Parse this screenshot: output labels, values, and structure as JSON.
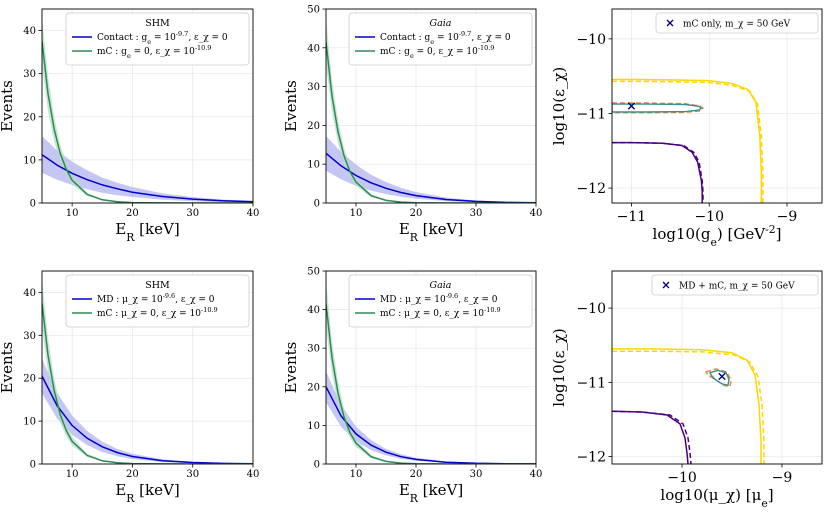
{
  "chart_data": [
    {
      "id": "a",
      "type": "line",
      "xlabel": "E_R [keV]",
      "ylabel": "Events",
      "xlim": [
        5,
        40
      ],
      "ylim": [
        0,
        45
      ],
      "xticks": [
        10,
        20,
        30,
        40
      ],
      "yticks": [
        0,
        10,
        20,
        30,
        40
      ],
      "legend": {
        "title": "SHM",
        "title_italic": false,
        "position": "top-right",
        "entries": [
          "Contact : g_e = 10^-9.7, ε_χ = 0",
          "mC : g_e = 0, ε_χ = 10^-10.9"
        ]
      },
      "series": [
        {
          "name": "Contact : g_e = 10^-9.7, ε_χ = 0",
          "color": "#0000cc",
          "band": "#b3b3f0",
          "x": [
            5,
            7.5,
            10,
            12.5,
            15,
            17.5,
            20,
            25,
            30,
            35,
            40
          ],
          "y": [
            11.2,
            8.8,
            6.9,
            5.4,
            4.2,
            3.3,
            2.5,
            1.5,
            0.9,
            0.5,
            0.3
          ],
          "lower": [
            7.0,
            5.4,
            4.2,
            3.2,
            2.4,
            1.8,
            1.4,
            0.8,
            0.4,
            0.2,
            0.1
          ],
          "upper": [
            15.5,
            12.2,
            9.6,
            7.6,
            5.9,
            4.7,
            3.7,
            2.2,
            1.4,
            0.8,
            0.5
          ]
        },
        {
          "name": "mC : g_e = 0, ε_χ = 10^-10.9",
          "color": "#2e8b57",
          "band": "#b4dcc4",
          "x": [
            5,
            6,
            7,
            8,
            9,
            10,
            12.5,
            15,
            17.5,
            20,
            25,
            30,
            40
          ],
          "y": [
            37.5,
            25.4,
            17.2,
            11.6,
            7.9,
            5.3,
            2.0,
            0.75,
            0.3,
            0.1,
            0.02,
            0,
            0
          ],
          "lower": [
            31.9,
            21.3,
            14.3,
            9.6,
            6.5,
            4.3,
            1.6,
            0.58,
            0.22,
            0.07,
            0.01,
            0,
            0
          ],
          "upper": [
            43.1,
            29.5,
            20.1,
            13.6,
            9.3,
            6.3,
            2.4,
            0.92,
            0.38,
            0.13,
            0.03,
            0,
            0
          ]
        }
      ]
    },
    {
      "id": "b",
      "type": "line",
      "xlabel": "E_R [keV]",
      "ylabel": "Events",
      "xlim": [
        5,
        40
      ],
      "ylim": [
        0,
        50
      ],
      "xticks": [
        10,
        20,
        30,
        40
      ],
      "yticks": [
        0,
        10,
        20,
        30,
        40,
        50
      ],
      "legend": {
        "title": "Gaia",
        "title_italic": true,
        "position": "top-right",
        "entries": [
          "Contact : g_e = 10^-9.7, ε_χ = 0",
          "mC : g_e = 0, ε_χ = 10^-10.9"
        ]
      },
      "series": [
        {
          "name": "Contact : g_e = 10^-9.7, ε_χ = 0",
          "color": "#0000cc",
          "band": "#b3b3f0",
          "x": [
            5,
            7.5,
            10,
            12.5,
            15,
            17.5,
            20,
            25,
            30,
            35,
            40
          ],
          "y": [
            12.8,
            9.6,
            7.1,
            5.2,
            3.8,
            2.7,
            1.9,
            0.9,
            0.4,
            0.15,
            0.05
          ],
          "lower": [
            8.3,
            6.1,
            4.4,
            3.2,
            2.3,
            1.6,
            1.1,
            0.5,
            0.2,
            0.07,
            0.02
          ],
          "upper": [
            17.3,
            13.2,
            9.9,
            7.3,
            5.4,
            3.9,
            2.8,
            1.4,
            0.65,
            0.25,
            0.1
          ]
        },
        {
          "name": "mC : g_e = 0, ε_χ = 10^-10.9",
          "color": "#2e8b57",
          "band": "#b4dcc4",
          "x": [
            5,
            6,
            7,
            8,
            9,
            10,
            12.5,
            15,
            17.5,
            20,
            25,
            30,
            40
          ],
          "y": [
            41.5,
            27.6,
            18.4,
            12.2,
            8.1,
            5.4,
            1.9,
            0.68,
            0.24,
            0.08,
            0.01,
            0,
            0
          ],
          "lower": [
            35.5,
            23.4,
            15.4,
            10.1,
            6.7,
            4.4,
            1.5,
            0.52,
            0.18,
            0.06,
            0.01,
            0,
            0
          ],
          "upper": [
            47.5,
            31.8,
            21.4,
            14.3,
            9.5,
            6.4,
            2.3,
            0.84,
            0.3,
            0.1,
            0.02,
            0,
            0
          ]
        }
      ]
    },
    {
      "id": "c",
      "type": "line",
      "xlabel": "log10(g_e) [GeV^-2]",
      "ylabel": "log10(ε_χ)",
      "xlim": [
        -11.25,
        -8.55
      ],
      "ylim": [
        -12.2,
        -9.6
      ],
      "xticks": [
        -11,
        -10,
        -9
      ],
      "yticks": [
        -12,
        -11,
        -10
      ],
      "legend": {
        "title": "",
        "position": "top-right",
        "entries": [
          "mC only, m_χ = 50 GeV"
        ]
      },
      "marker": {
        "x": -11.0,
        "y": -10.9,
        "color": "#000080",
        "label": "mC only, m_χ = 50 GeV"
      },
      "series": [
        {
          "name": "yellow solid",
          "color": "#ffd700",
          "dash": false,
          "x": [
            -11.25,
            -11.0,
            -10.5,
            -10.0,
            -9.7,
            -9.5,
            -9.4,
            -9.35,
            -9.33,
            -9.33
          ],
          "y": [
            -10.545,
            -10.545,
            -10.55,
            -10.56,
            -10.6,
            -10.68,
            -10.85,
            -11.3,
            -11.8,
            -12.2
          ]
        },
        {
          "name": "yellow dashed",
          "color": "#ffd700",
          "dash": true,
          "x": [
            -11.25,
            -11.0,
            -10.5,
            -10.0,
            -9.7,
            -9.48,
            -9.38,
            -9.33,
            -9.31,
            -9.31
          ],
          "y": [
            -10.57,
            -10.57,
            -10.575,
            -10.585,
            -10.625,
            -10.7,
            -10.87,
            -11.3,
            -11.8,
            -12.2
          ]
        },
        {
          "name": "purple solid",
          "color": "#4b0082",
          "dash": false,
          "x": [
            -11.25,
            -11.0,
            -10.6,
            -10.35,
            -10.22,
            -10.15,
            -10.1,
            -10.09,
            -10.09
          ],
          "y": [
            -11.39,
            -11.39,
            -11.4,
            -11.43,
            -11.52,
            -11.65,
            -11.9,
            -12.05,
            -12.2
          ]
        },
        {
          "name": "purple dashed",
          "color": "#4b0082",
          "dash": true,
          "x": [
            -11.25,
            -11.0,
            -10.6,
            -10.33,
            -10.2,
            -10.13,
            -10.09,
            -10.08,
            -10.08
          ],
          "y": [
            -11.39,
            -11.39,
            -11.4,
            -11.43,
            -11.52,
            -11.65,
            -11.9,
            -12.05,
            -12.2
          ]
        },
        {
          "name": "orange contour",
          "color": "#e8803a",
          "dash": true,
          "closed": true,
          "x": [
            -11.25,
            -10.8,
            -10.3,
            -10.12,
            -10.08,
            -10.12,
            -10.3,
            -10.8,
            -11.25
          ],
          "y": [
            -10.86,
            -10.86,
            -10.87,
            -10.9,
            -10.93,
            -10.965,
            -10.985,
            -10.99,
            -10.99
          ]
        },
        {
          "name": "teal contour",
          "color": "#3a8f8f",
          "dash": false,
          "closed": true,
          "x": [
            -11.25,
            -10.8,
            -10.3,
            -10.13,
            -10.1,
            -10.13,
            -10.3,
            -10.8,
            -11.25
          ],
          "y": [
            -10.875,
            -10.875,
            -10.88,
            -10.905,
            -10.93,
            -10.955,
            -10.975,
            -10.98,
            -10.98
          ]
        }
      ]
    },
    {
      "id": "d",
      "type": "line",
      "xlabel": "E_R [keV]",
      "ylabel": "Events",
      "xlim": [
        5,
        40
      ],
      "ylim": [
        0,
        45
      ],
      "xticks": [
        10,
        20,
        30,
        40
      ],
      "yticks": [
        0,
        10,
        20,
        30,
        40
      ],
      "legend": {
        "title": "SHM",
        "title_italic": false,
        "position": "top-right",
        "entries": [
          "MD : μ_χ = 10^-9.6, ε_χ = 0",
          "mC : μ_χ = 0, ε_χ = 10^-10.9"
        ]
      },
      "series": [
        {
          "name": "MD : μ_χ = 10^-9.6, ε_χ = 0",
          "color": "#0000cc",
          "band": "#b3b3f0",
          "x": [
            5,
            7.5,
            10,
            12.5,
            15,
            17.5,
            20,
            25,
            30,
            35,
            40
          ],
          "y": [
            20.5,
            13.6,
            9.0,
            6.0,
            4.0,
            2.65,
            1.75,
            0.77,
            0.34,
            0.15,
            0.07
          ],
          "lower": [
            16.5,
            10.6,
            6.8,
            4.4,
            2.8,
            1.8,
            1.15,
            0.47,
            0.19,
            0.08,
            0.03
          ],
          "upper": [
            24.5,
            16.6,
            11.3,
            7.7,
            5.2,
            3.5,
            2.4,
            1.1,
            0.5,
            0.23,
            0.11
          ]
        },
        {
          "name": "mC : μ_χ = 0, ε_χ = 10^-10.9",
          "color": "#2e8b57",
          "band": "#b4dcc4",
          "x": [
            5,
            6,
            7,
            8,
            9,
            10,
            12.5,
            15,
            17.5,
            20,
            25,
            30,
            40
          ],
          "y": [
            37.5,
            25.4,
            17.2,
            11.6,
            7.9,
            5.3,
            2.0,
            0.75,
            0.3,
            0.1,
            0.02,
            0,
            0
          ],
          "lower": [
            31.9,
            21.3,
            14.3,
            9.6,
            6.5,
            4.3,
            1.6,
            0.58,
            0.22,
            0.07,
            0.01,
            0,
            0
          ],
          "upper": [
            43.1,
            29.5,
            20.1,
            13.6,
            9.3,
            6.3,
            2.4,
            0.92,
            0.38,
            0.13,
            0.03,
            0,
            0
          ]
        }
      ]
    },
    {
      "id": "e",
      "type": "line",
      "xlabel": "E_R [keV]",
      "ylabel": "Events",
      "xlim": [
        5,
        40
      ],
      "ylim": [
        0,
        50
      ],
      "xticks": [
        10,
        20,
        30,
        40
      ],
      "yticks": [
        0,
        10,
        20,
        30,
        40,
        50
      ],
      "legend": {
        "title": "Gaia",
        "title_italic": true,
        "position": "top-right",
        "entries": [
          "MD : μ_χ = 10^-9.6, ε_χ = 0",
          "mC : μ_χ = 0, ε_χ = 10^-10.9"
        ]
      },
      "series": [
        {
          "name": "MD : μ_χ = 10^-9.6, ε_χ = 0",
          "color": "#0000cc",
          "band": "#b3b3f0",
          "x": [
            5,
            7.5,
            10,
            12.5,
            15,
            17.5,
            20,
            25,
            30,
            35,
            40
          ],
          "y": [
            20.0,
            12.5,
            7.8,
            4.9,
            3.05,
            1.9,
            1.2,
            0.46,
            0.18,
            0.07,
            0.03
          ],
          "lower": [
            16.0,
            9.7,
            5.9,
            3.6,
            2.2,
            1.35,
            0.82,
            0.3,
            0.11,
            0.04,
            0.01
          ],
          "upper": [
            24.0,
            15.3,
            9.7,
            6.2,
            3.9,
            2.5,
            1.6,
            0.62,
            0.25,
            0.1,
            0.05
          ]
        },
        {
          "name": "mC : μ_χ = 0, ε_χ = 10^-10.9",
          "color": "#2e8b57",
          "band": "#b4dcc4",
          "x": [
            5,
            6,
            7,
            8,
            9,
            10,
            12.5,
            15,
            17.5,
            20,
            25,
            30,
            40
          ],
          "y": [
            41.5,
            27.6,
            18.4,
            12.2,
            8.1,
            5.4,
            1.9,
            0.68,
            0.24,
            0.08,
            0.01,
            0,
            0
          ],
          "lower": [
            35.5,
            23.4,
            15.4,
            10.1,
            6.7,
            4.4,
            1.5,
            0.52,
            0.18,
            0.06,
            0.01,
            0,
            0
          ],
          "upper": [
            47.5,
            31.8,
            21.4,
            14.3,
            9.5,
            6.4,
            2.3,
            0.84,
            0.3,
            0.1,
            0.02,
            0,
            0
          ]
        }
      ]
    },
    {
      "id": "f",
      "type": "line",
      "xlabel": "log10(μ_χ) [μ_e]",
      "ylabel": "log10(ε_χ)",
      "xlim": [
        -10.7,
        -8.6
      ],
      "ylim": [
        -12.1,
        -9.5
      ],
      "xticks": [
        -10,
        -9
      ],
      "yticks": [
        -12,
        -11,
        -10
      ],
      "legend": {
        "title": "",
        "position": "top-right",
        "entries": [
          "MD + mC, m_χ = 50 GeV"
        ]
      },
      "marker": {
        "x": -9.6,
        "y": -10.92,
        "color": "#000080",
        "label": "MD + mC, m_χ = 50 GeV"
      },
      "series": [
        {
          "name": "yellow solid",
          "color": "#ffd700",
          "dash": false,
          "x": [
            -10.7,
            -10.3,
            -9.8,
            -9.5,
            -9.35,
            -9.27,
            -9.23,
            -9.21,
            -9.21
          ],
          "y": [
            -10.55,
            -10.55,
            -10.56,
            -10.6,
            -10.7,
            -10.9,
            -11.3,
            -11.8,
            -12.1
          ]
        },
        {
          "name": "yellow dashed",
          "color": "#ffd700",
          "dash": true,
          "x": [
            -10.7,
            -10.3,
            -9.8,
            -9.48,
            -9.32,
            -9.24,
            -9.2,
            -9.18,
            -9.18
          ],
          "y": [
            -10.58,
            -10.58,
            -10.59,
            -10.63,
            -10.73,
            -10.92,
            -11.3,
            -11.8,
            -12.1
          ]
        },
        {
          "name": "purple solid",
          "color": "#4b0082",
          "dash": false,
          "x": [
            -10.7,
            -10.4,
            -10.15,
            -10.02,
            -9.97,
            -9.95,
            -9.94
          ],
          "y": [
            -11.39,
            -11.4,
            -11.44,
            -11.56,
            -11.75,
            -11.95,
            -12.1
          ]
        },
        {
          "name": "purple dashed",
          "color": "#4b0082",
          "dash": true,
          "x": [
            -10.7,
            -10.4,
            -10.12,
            -9.99,
            -9.94,
            -9.92,
            -9.91
          ],
          "y": [
            -11.39,
            -11.4,
            -11.44,
            -11.56,
            -11.75,
            -11.95,
            -12.1
          ]
        },
        {
          "name": "orange contour",
          "color": "#e8803a",
          "dash": true,
          "closed": true,
          "x": [
            -9.76,
            -9.66,
            -9.55,
            -9.51,
            -9.52,
            -9.58,
            -9.66,
            -9.74,
            -9.76
          ],
          "y": [
            -10.86,
            -10.82,
            -10.86,
            -10.97,
            -11.06,
            -11.04,
            -10.97,
            -10.9,
            -10.86
          ]
        },
        {
          "name": "teal contour",
          "color": "#3a8f8f",
          "dash": false,
          "closed": true,
          "x": [
            -9.72,
            -9.64,
            -9.56,
            -9.53,
            -9.54,
            -9.6,
            -9.67,
            -9.71,
            -9.72
          ],
          "y": [
            -10.87,
            -10.84,
            -10.87,
            -10.96,
            -11.04,
            -11.02,
            -10.96,
            -10.9,
            -10.87
          ]
        }
      ]
    }
  ]
}
